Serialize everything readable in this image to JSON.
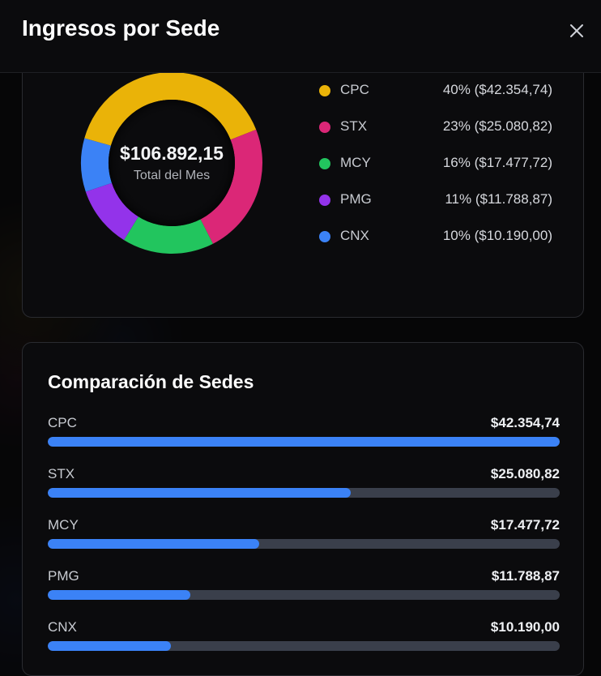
{
  "header": {
    "title": "Ingresos por Sede"
  },
  "summary": {
    "total": "$106.892,15",
    "label": "Total del Mes"
  },
  "colors": {
    "CPC": "#eab308",
    "STX": "#db2777",
    "MCY": "#22c55e",
    "PMG": "#9333ea",
    "CNX": "#3b82f6",
    "bar": "#3b82f6"
  },
  "legend": [
    {
      "name": "CPC",
      "value_text": "40% ($42.354,74)"
    },
    {
      "name": "STX",
      "value_text": "23% ($25.080,82)"
    },
    {
      "name": "MCY",
      "value_text": "16% ($17.477,72)"
    },
    {
      "name": "PMG",
      "value_text": "11% ($11.788,87)"
    },
    {
      "name": "CNX",
      "value_text": "10% ($10.190,00)"
    }
  ],
  "comparison": {
    "title": "Comparación de Sedes",
    "rows": [
      {
        "name": "CPC",
        "value_text": "$42.354,74"
      },
      {
        "name": "STX",
        "value_text": "$25.080,82"
      },
      {
        "name": "MCY",
        "value_text": "$17.477,72"
      },
      {
        "name": "PMG",
        "value_text": "$11.788,87"
      },
      {
        "name": "CNX",
        "value_text": "$10.190,00"
      }
    ]
  },
  "chart_data": [
    {
      "type": "pie",
      "categories": [
        "CPC",
        "STX",
        "MCY",
        "PMG",
        "CNX"
      ],
      "values": [
        42354.74,
        25080.82,
        17477.72,
        11788.87,
        10190.0
      ],
      "percent": [
        40,
        23,
        16,
        11,
        10
      ]
    },
    {
      "type": "bar",
      "categories": [
        "CPC",
        "STX",
        "MCY",
        "PMG",
        "CNX"
      ],
      "values": [
        42354.74,
        25080.82,
        17477.72,
        11788.87,
        10190.0
      ],
      "xlim": [
        0,
        42354.74
      ]
    }
  ],
  "icons": {
    "close": "close-icon"
  }
}
